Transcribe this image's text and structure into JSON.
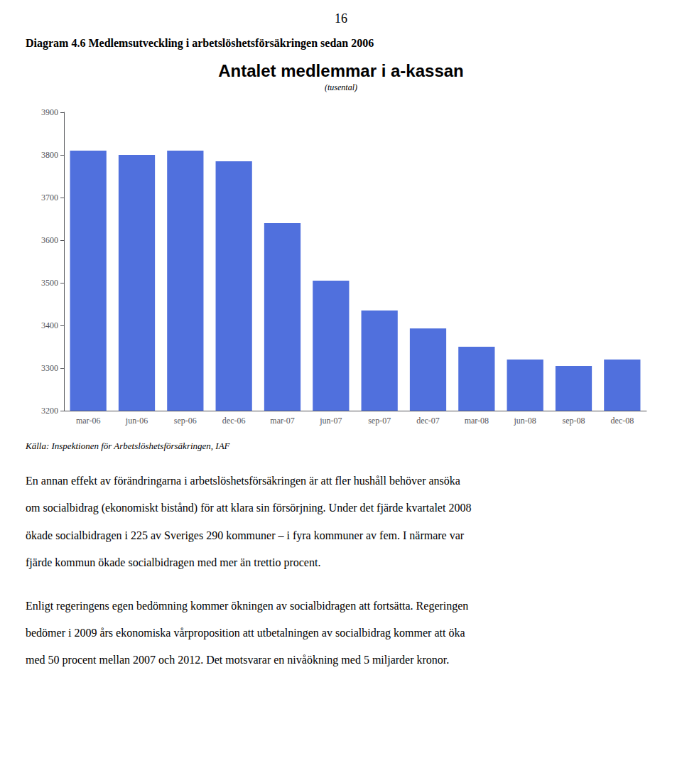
{
  "page_number": "16",
  "heading": "Diagram 4.6 Medlemsutveckling i arbetslöshetsförsäkringen sedan 2006",
  "chart_data": {
    "type": "bar",
    "title": "Antalet medlemmar i a-kassan",
    "subtitle": "(tusental)",
    "source": "Källa: Inspektionen för Arbetslöshetsförsäkringen, IAF",
    "categories": [
      "mar-06",
      "jun-06",
      "sep-06",
      "dec-06",
      "mar-07",
      "jun-07",
      "sep-07",
      "dec-07",
      "mar-08",
      "jun-08",
      "sep-08",
      "dec-08"
    ],
    "values": [
      3810,
      3800,
      3810,
      3785,
      3640,
      3505,
      3435,
      3393,
      3350,
      3320,
      3305,
      3320
    ],
    "ylim": [
      3200,
      3900
    ],
    "yticks": [
      3200,
      3300,
      3400,
      3500,
      3600,
      3700,
      3800,
      3900
    ],
    "grid": false
  },
  "paragraphs": [
    [
      "En annan effekt av förändringarna i arbetslöshetsförsäkringen är att fler hushåll behöver ansöka",
      "om socialbidrag (ekonomiskt bistånd) för att klara sin försörjning. Under det fjärde kvartalet 2008",
      "ökade socialbidragen i 225 av Sveriges 290 kommuner – i fyra kommuner av fem. I närmare var",
      "fjärde kommun ökade socialbidragen med mer än trettio procent."
    ],
    [
      "Enligt regeringens egen bedömning kommer ökningen av socialbidragen att fortsätta. Regeringen",
      "bedömer i 2009 års ekonomiska vårproposition att utbetalningen av socialbidrag kommer att öka",
      "med 50 procent mellan 2007 och 2012. Det motsvarar en nivåökning med 5 miljarder kronor."
    ]
  ]
}
